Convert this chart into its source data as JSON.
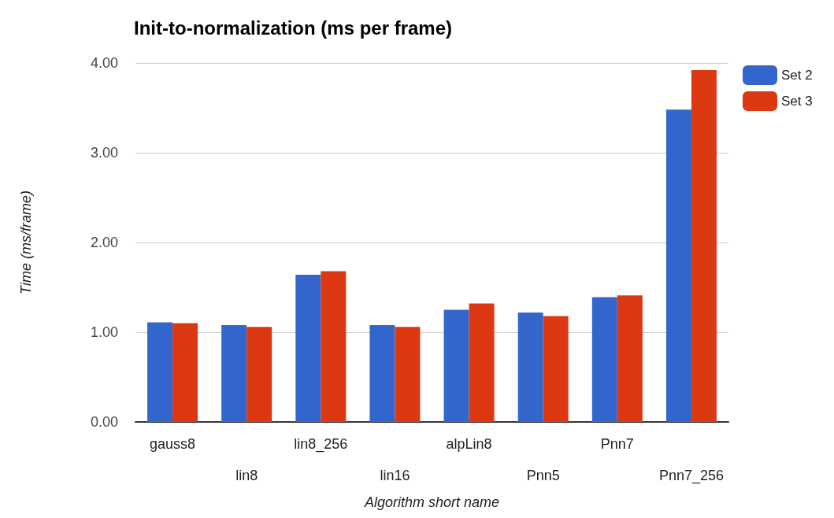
{
  "chart_data": {
    "type": "bar",
    "title": "Init-to-normalization (ms per frame)",
    "xlabel": "Algorithm short name",
    "ylabel": "Time (ms/frame)",
    "categories": [
      "gauss8",
      "lin8",
      "lin8_256",
      "lin16",
      "alpLin8",
      "Pnn5",
      "Pnn7",
      "Pnn7_256"
    ],
    "series": [
      {
        "name": "Set 2",
        "color": "#3366cc",
        "values": [
          1.11,
          1.08,
          1.64,
          1.08,
          1.25,
          1.22,
          1.39,
          3.48
        ]
      },
      {
        "name": "Set 3",
        "color": "#dc3912",
        "values": [
          1.1,
          1.06,
          1.68,
          1.06,
          1.32,
          1.18,
          1.41,
          3.92
        ]
      }
    ],
    "ylim": [
      0,
      4
    ],
    "yticks": [
      {
        "value": 0,
        "label": "0.00"
      },
      {
        "value": 1,
        "label": "1.00"
      },
      {
        "value": 2,
        "label": "2.00"
      },
      {
        "value": 3,
        "label": "3.00"
      },
      {
        "value": 4,
        "label": "4.00"
      }
    ],
    "grid": "y",
    "legend": "top right"
  }
}
